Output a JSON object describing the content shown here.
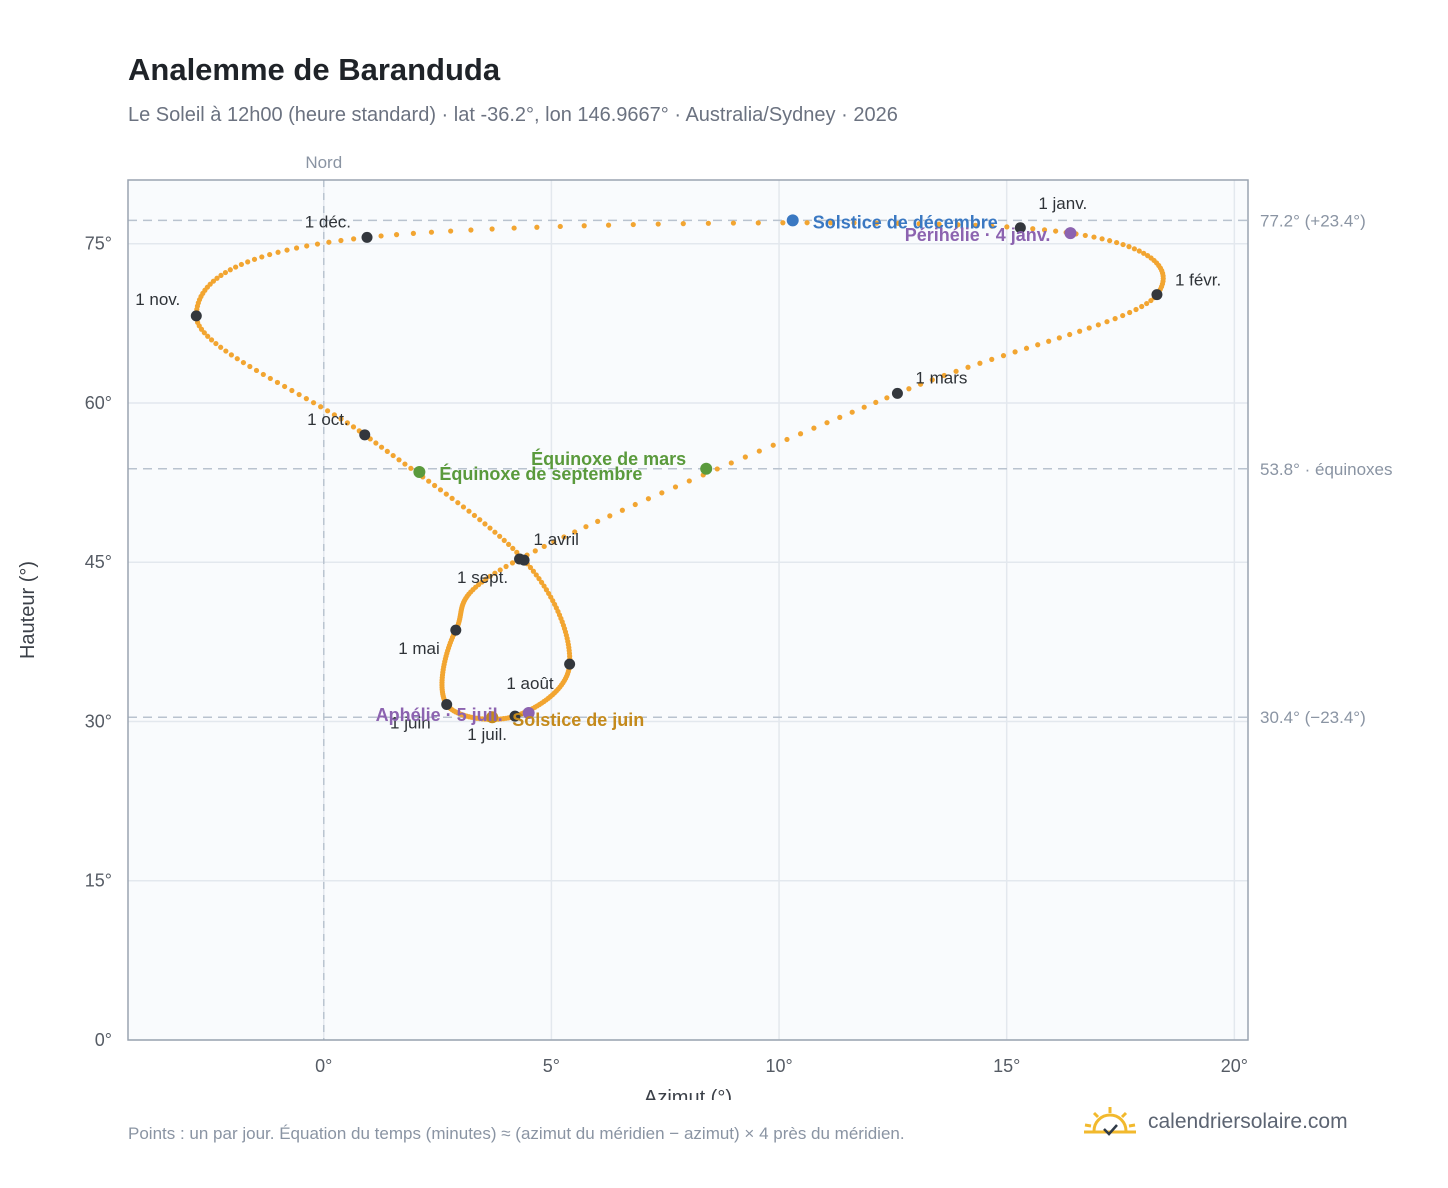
{
  "header": {
    "title": "Analemme de Baranduda",
    "subtitle": "Le Soleil à 12h00 (heure standard) · lat -36.2°, lon 146.9667° · Australia/Sydney · 2026"
  },
  "footer": {
    "note": "Points : un par jour. Équation du temps (minutes) ≈ (azimut du méridien − azimut) × 4 près du méridien.",
    "brand": "calendriersolaire.com"
  },
  "colors": {
    "curve": "#f2a531",
    "month_dot": "#33373d",
    "equinox": "#5a9a3c",
    "solstice_dec": "#3a78c2",
    "solstice_jun": "#c48a1c",
    "apsis": "#8c63b0",
    "refline": "#b9c3cf",
    "plot_bg": "#f9fbfd"
  },
  "chart_data": {
    "type": "scatter",
    "title": "Analemme de Baranduda",
    "xlabel": "Azimut (°)",
    "ylabel": "Hauteur (°)",
    "xlim": [
      -4.3,
      20.3
    ],
    "ylim": [
      0,
      81
    ],
    "x_ticks": [
      0,
      5,
      10,
      15,
      20
    ],
    "x_tick_labels": [
      "0°",
      "5°",
      "10°",
      "15°",
      "20°"
    ],
    "y_ticks": [
      0,
      15,
      30,
      45,
      60,
      75
    ],
    "y_tick_labels": [
      "0°",
      "15°",
      "30°",
      "45°",
      "60°",
      "75°"
    ],
    "grid": true,
    "meridian": {
      "x": 0,
      "label": "Nord"
    },
    "reference_lines": [
      {
        "y": 77.2,
        "label": "77.2° (+23.4°)"
      },
      {
        "y": 53.8,
        "label": "53.8° · équinoxes"
      },
      {
        "y": 30.4,
        "label": "30.4° (−23.4°)"
      }
    ],
    "month_points": [
      {
        "label": "1 janv.",
        "x": 15.3,
        "y": 76.5
      },
      {
        "label": "1 févr.",
        "x": 18.3,
        "y": 70.2
      },
      {
        "label": "1 mars",
        "x": 12.6,
        "y": 60.9
      },
      {
        "label": "1 avril",
        "x": 4.3,
        "y": 45.3
      },
      {
        "label": "1 mai",
        "x": 2.9,
        "y": 38.6
      },
      {
        "label": "1 juin",
        "x": 2.7,
        "y": 31.6
      },
      {
        "label": "1 juil.",
        "x": 4.2,
        "y": 30.5
      },
      {
        "label": "1 août",
        "x": 5.4,
        "y": 35.4
      },
      {
        "label": "1 sept.",
        "x": 4.4,
        "y": 45.2
      },
      {
        "label": "1 oct.",
        "x": 0.9,
        "y": 57.0
      },
      {
        "label": "1 nov.",
        "x": -2.8,
        "y": 68.2
      },
      {
        "label": "1 déc.",
        "x": 0.95,
        "y": 75.6
      }
    ],
    "events": [
      {
        "label": "Solstice de décembre",
        "x": 10.3,
        "y": 77.2,
        "kind": "solstice_dec"
      },
      {
        "label": "Périhélie · 4 janv.",
        "x": 16.4,
        "y": 76.0,
        "kind": "apsis"
      },
      {
        "label": "Équinoxe de mars",
        "x": 8.4,
        "y": 53.8,
        "kind": "equinox"
      },
      {
        "label": "Équinoxe de septembre",
        "x": 2.1,
        "y": 53.5,
        "kind": "equinox"
      },
      {
        "label": "Aphélie · 5 juil.",
        "x": 4.5,
        "y": 30.8,
        "kind": "apsis"
      },
      {
        "label": "Solstice de juin",
        "x": 3.7,
        "y": 30.4,
        "kind": "solstice_jun"
      }
    ]
  }
}
